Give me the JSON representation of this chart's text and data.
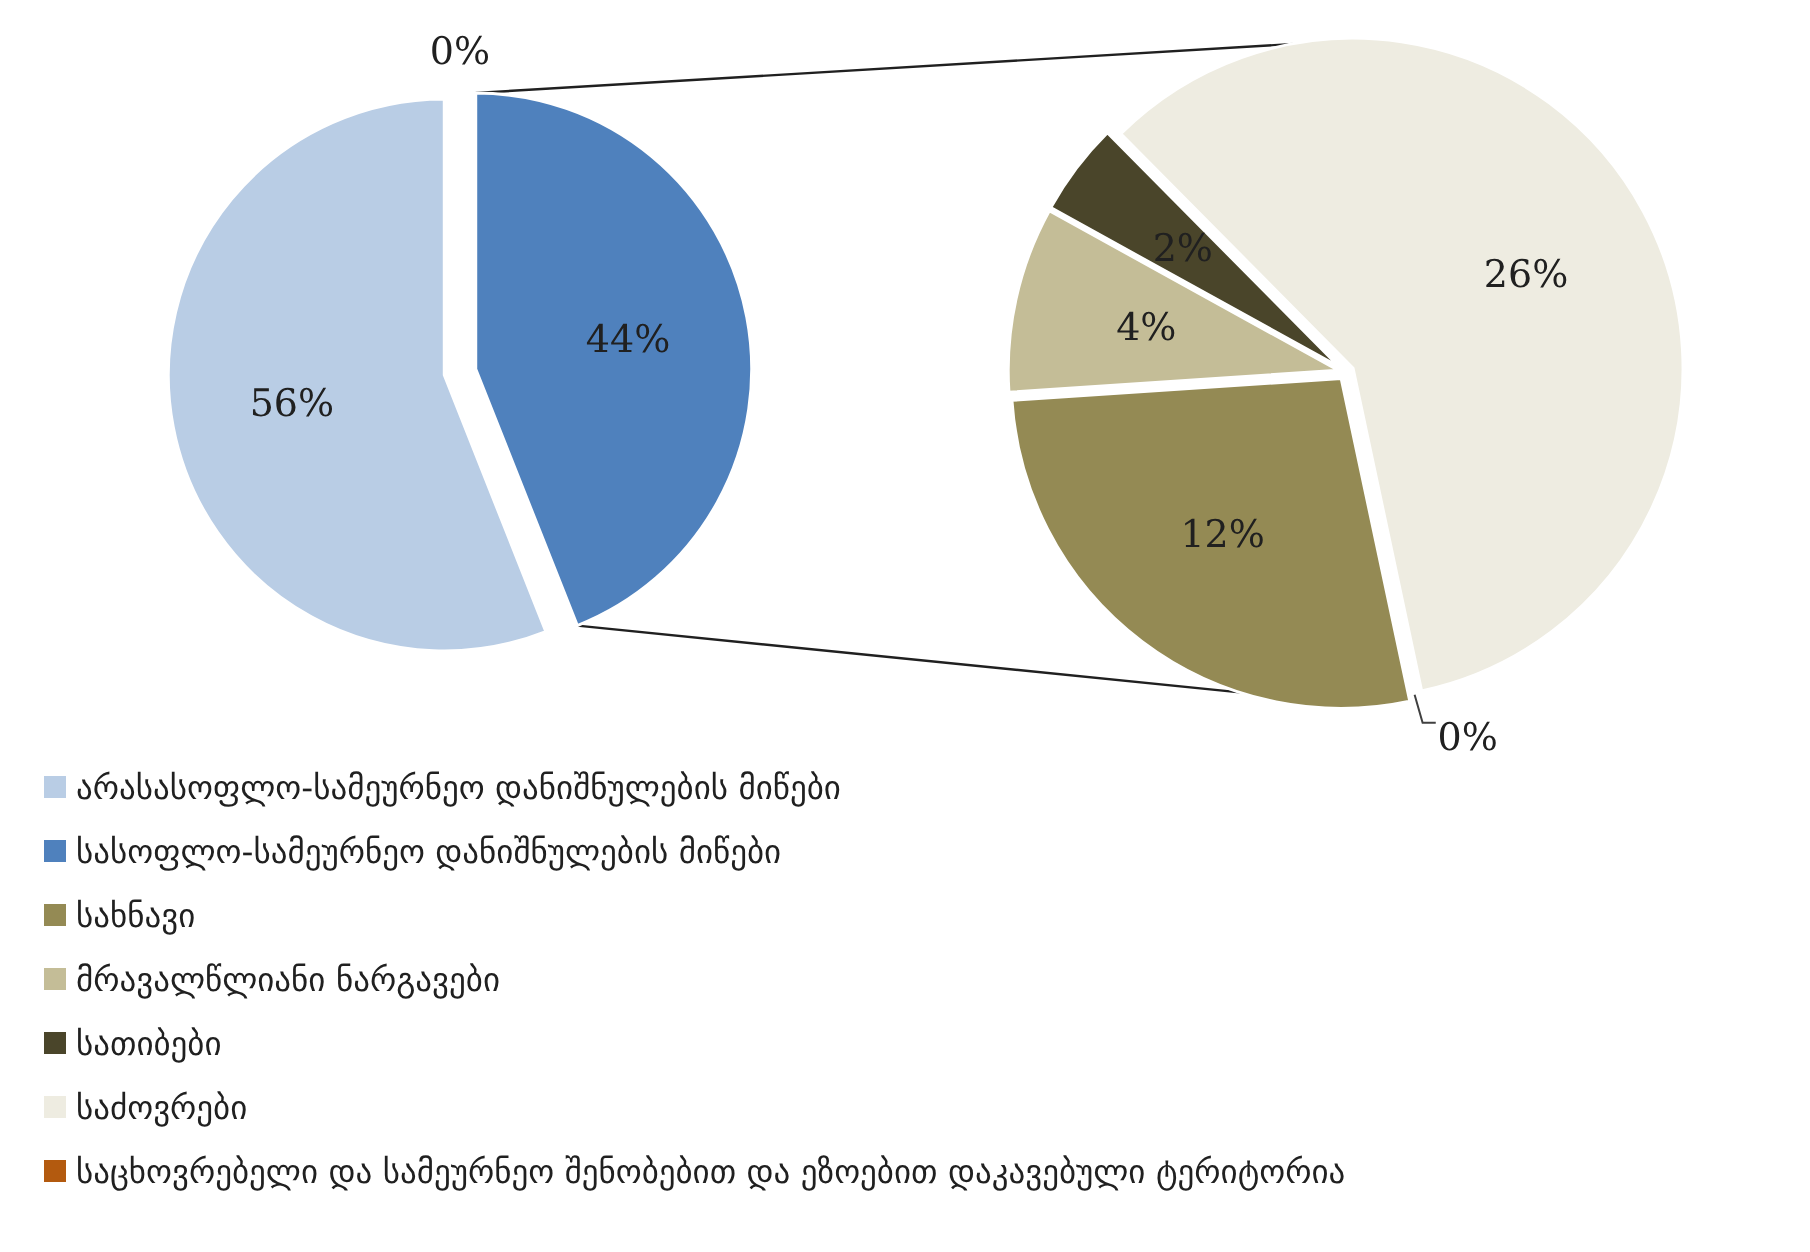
{
  "chart_data": [
    {
      "type": "pie",
      "categories": [
        "არასასოფლო-სამეურნეო დანიშნულების მიწები",
        null,
        "სასოფლო-სამეურნეო დანიშნულების მიწები"
      ],
      "values": [
        56,
        0,
        44
      ],
      "value_labels": [
        "56%",
        "0%",
        "44%"
      ],
      "colors": [
        "#b9cde5",
        "#7f7f7f",
        "#4f81bd"
      ],
      "legend": "bottom"
    },
    {
      "type": "pie",
      "categories": [
        "სახნავი",
        "მრავალწლიანი ნარგავები",
        "სათიბები",
        "საძოვრები",
        "საცხოვრებელი და სამეურნეო შენობებით და ეზოებით დაკავებული ტერიტორია"
      ],
      "values": [
        12,
        4,
        2,
        26,
        0
      ],
      "value_labels": [
        "12%",
        "4%",
        "2%",
        "26%",
        "0%"
      ],
      "colors": [
        "#948a54",
        "#c4bd97",
        "#4a452a",
        "#eeece1",
        "#b35a0f"
      ],
      "legend": "bottom"
    }
  ]
}
